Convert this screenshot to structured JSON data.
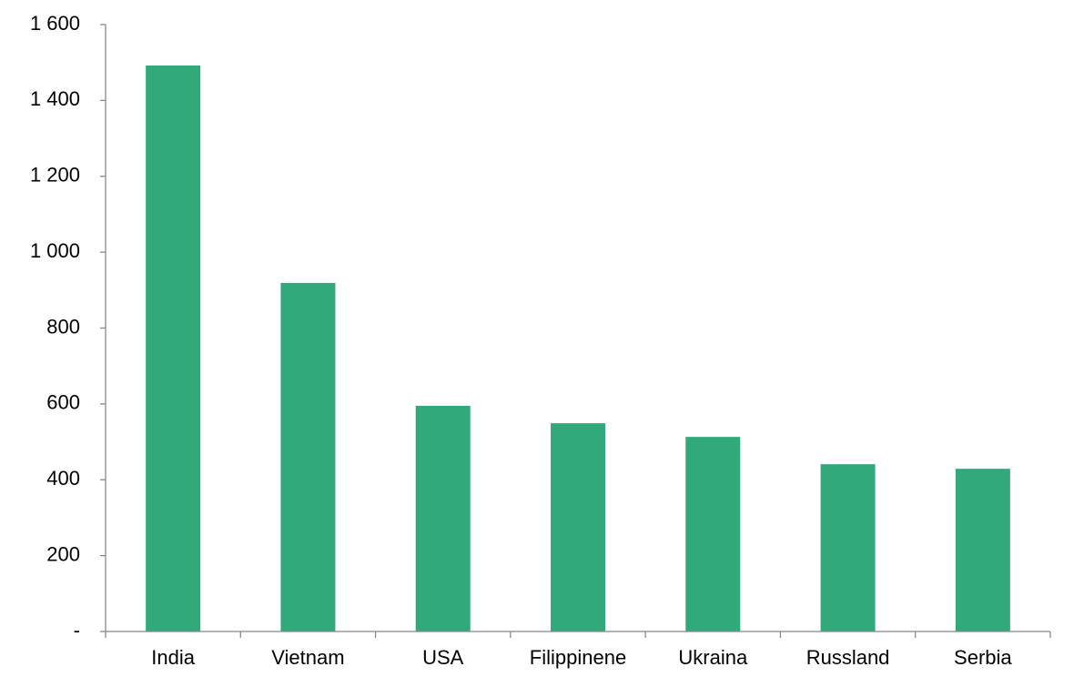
{
  "chart_data": {
    "type": "bar",
    "categories": [
      "India",
      "Vietnam",
      "USA",
      "Filippinene",
      "Ukraina",
      "Russland",
      "Serbia"
    ],
    "values": [
      1492,
      919,
      595,
      549,
      513,
      441,
      429
    ],
    "color": "#31a97b",
    "ylim": [
      0,
      1600
    ],
    "yticks": [
      {
        "value": 0,
        "label": "-"
      },
      200,
      400,
      600,
      800,
      {
        "value": 1000,
        "label": "1 000"
      },
      {
        "value": 1200,
        "label": "1 200"
      },
      {
        "value": 1400,
        "label": "1 400"
      },
      {
        "value": 1600,
        "label": "1 600"
      }
    ],
    "grid": false
  }
}
